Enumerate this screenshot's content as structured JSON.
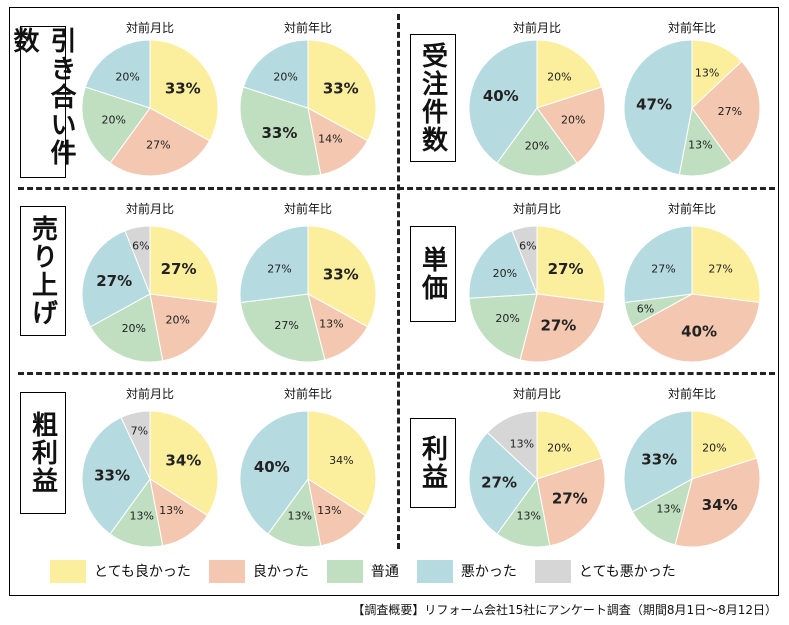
{
  "colors": {
    "very_good": "#fbee9c",
    "good": "#f3c7b0",
    "normal": "#bfdfc0",
    "bad": "#b5dbe1",
    "very_bad": "#d6d6d6"
  },
  "legend": [
    {
      "key": "very_good",
      "label": "とても良かった"
    },
    {
      "key": "good",
      "label": "良かった"
    },
    {
      "key": "normal",
      "label": "普通"
    },
    {
      "key": "bad",
      "label": "悪かった"
    },
    {
      "key": "very_bad",
      "label": "とても悪かった"
    }
  ],
  "footnote": "【調査概要】リフォーム会社15社にアンケート調査（期間8月1日〜8月12日）",
  "chart_data": [
    {
      "type": "pie",
      "metric": "引き合い件数",
      "title": "対前月比",
      "slices": [
        {
          "key": "very_good",
          "value": 33,
          "label": "33%",
          "bold": true
        },
        {
          "key": "good",
          "value": 27,
          "label": "27%",
          "bold": false
        },
        {
          "key": "normal",
          "value": 20,
          "label": "20%",
          "bold": false
        },
        {
          "key": "bad",
          "value": 20,
          "label": "20%",
          "bold": false
        }
      ]
    },
    {
      "type": "pie",
      "metric": "引き合い件数",
      "title": "対前年比",
      "slices": [
        {
          "key": "very_good",
          "value": 33,
          "label": "33%",
          "bold": true
        },
        {
          "key": "good",
          "value": 14,
          "label": "14%",
          "bold": false
        },
        {
          "key": "normal",
          "value": 33,
          "label": "33%",
          "bold": true
        },
        {
          "key": "bad",
          "value": 20,
          "label": "20%",
          "bold": false
        }
      ]
    },
    {
      "type": "pie",
      "metric": "受注件数",
      "title": "対前月比",
      "slices": [
        {
          "key": "very_good",
          "value": 20,
          "label": "20%",
          "bold": false
        },
        {
          "key": "good",
          "value": 20,
          "label": "20%",
          "bold": false
        },
        {
          "key": "normal",
          "value": 20,
          "label": "20%",
          "bold": false
        },
        {
          "key": "bad",
          "value": 40,
          "label": "40%",
          "bold": true
        }
      ]
    },
    {
      "type": "pie",
      "metric": "受注件数",
      "title": "対前年比",
      "slices": [
        {
          "key": "very_good",
          "value": 13,
          "label": "13%",
          "bold": false
        },
        {
          "key": "good",
          "value": 27,
          "label": "27%",
          "bold": false
        },
        {
          "key": "normal",
          "value": 13,
          "label": "13%",
          "bold": false
        },
        {
          "key": "bad",
          "value": 47,
          "label": "47%",
          "bold": true
        }
      ]
    },
    {
      "type": "pie",
      "metric": "売り上げ",
      "title": "対前月比",
      "slices": [
        {
          "key": "very_good",
          "value": 27,
          "label": "27%",
          "bold": true
        },
        {
          "key": "good",
          "value": 20,
          "label": "20%",
          "bold": false
        },
        {
          "key": "normal",
          "value": 20,
          "label": "20%",
          "bold": false
        },
        {
          "key": "bad",
          "value": 27,
          "label": "27%",
          "bold": true
        },
        {
          "key": "very_bad",
          "value": 6,
          "label": "6%",
          "bold": false
        }
      ]
    },
    {
      "type": "pie",
      "metric": "売り上げ",
      "title": "対前年比",
      "slices": [
        {
          "key": "very_good",
          "value": 33,
          "label": "33%",
          "bold": true
        },
        {
          "key": "good",
          "value": 13,
          "label": "13%",
          "bold": false
        },
        {
          "key": "normal",
          "value": 27,
          "label": "27%",
          "bold": false
        },
        {
          "key": "bad",
          "value": 27,
          "label": "27%",
          "bold": false
        }
      ]
    },
    {
      "type": "pie",
      "metric": "単価",
      "title": "対前月比",
      "slices": [
        {
          "key": "very_good",
          "value": 27,
          "label": "27%",
          "bold": true
        },
        {
          "key": "good",
          "value": 27,
          "label": "27%",
          "bold": true
        },
        {
          "key": "normal",
          "value": 20,
          "label": "20%",
          "bold": false
        },
        {
          "key": "bad",
          "value": 20,
          "label": "20%",
          "bold": false
        },
        {
          "key": "very_bad",
          "value": 6,
          "label": "6%",
          "bold": false
        }
      ]
    },
    {
      "type": "pie",
      "metric": "単価",
      "title": "対前年比",
      "slices": [
        {
          "key": "very_good",
          "value": 27,
          "label": "27%",
          "bold": false
        },
        {
          "key": "good",
          "value": 40,
          "label": "40%",
          "bold": true
        },
        {
          "key": "normal",
          "value": 6,
          "label": "6%",
          "bold": false
        },
        {
          "key": "bad",
          "value": 27,
          "label": "27%",
          "bold": false
        }
      ]
    },
    {
      "type": "pie",
      "metric": "粗利益",
      "title": "対前月比",
      "slices": [
        {
          "key": "very_good",
          "value": 34,
          "label": "34%",
          "bold": true
        },
        {
          "key": "good",
          "value": 13,
          "label": "13%",
          "bold": false
        },
        {
          "key": "normal",
          "value": 13,
          "label": "13%",
          "bold": false
        },
        {
          "key": "bad",
          "value": 33,
          "label": "33%",
          "bold": true
        },
        {
          "key": "very_bad",
          "value": 7,
          "label": "7%",
          "bold": false
        }
      ]
    },
    {
      "type": "pie",
      "metric": "粗利益",
      "title": "対前年比",
      "slices": [
        {
          "key": "very_good",
          "value": 34,
          "label": "34%",
          "bold": false
        },
        {
          "key": "good",
          "value": 13,
          "label": "13%",
          "bold": false
        },
        {
          "key": "normal",
          "value": 13,
          "label": "13%",
          "bold": false
        },
        {
          "key": "bad",
          "value": 40,
          "label": "40%",
          "bold": true
        }
      ]
    },
    {
      "type": "pie",
      "metric": "利益",
      "title": "対前月比",
      "slices": [
        {
          "key": "very_good",
          "value": 20,
          "label": "20%",
          "bold": false
        },
        {
          "key": "good",
          "value": 27,
          "label": "27%",
          "bold": true
        },
        {
          "key": "normal",
          "value": 13,
          "label": "13%",
          "bold": false
        },
        {
          "key": "bad",
          "value": 27,
          "label": "27%",
          "bold": true
        },
        {
          "key": "very_bad",
          "value": 13,
          "label": "13%",
          "bold": false
        }
      ]
    },
    {
      "type": "pie",
      "metric": "利益",
      "title": "対前年比",
      "slices": [
        {
          "key": "very_good",
          "value": 20,
          "label": "20%",
          "bold": false
        },
        {
          "key": "good",
          "value": 34,
          "label": "34%",
          "bold": true
        },
        {
          "key": "normal",
          "value": 13,
          "label": "13%",
          "bold": false
        },
        {
          "key": "bad",
          "value": 33,
          "label": "33%",
          "bold": true
        }
      ]
    }
  ]
}
